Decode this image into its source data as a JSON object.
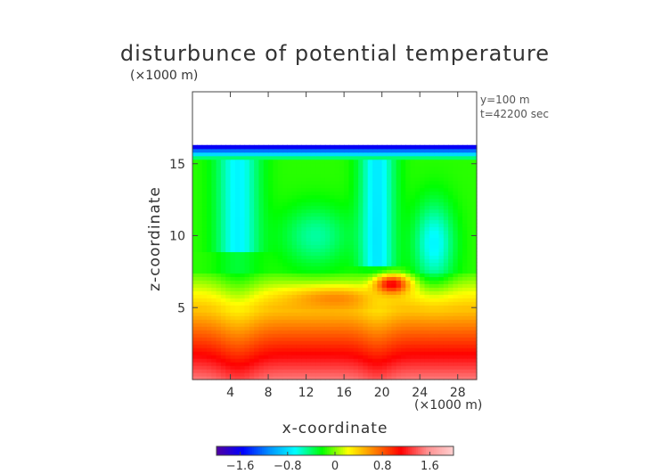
{
  "chart_data": {
    "type": "heatmap",
    "title": "disturbunce of potential temperature",
    "xlabel": "x-coordinate",
    "ylabel": "z-coordinate",
    "x_unit": "(×1000 m)",
    "y_unit": "(×1000 m)",
    "annotations": [
      "y=100 m",
      "t=42200 sec"
    ],
    "xlim": [
      0,
      30
    ],
    "ylim": [
      0,
      20
    ],
    "x_ticks": [
      4,
      8,
      12,
      16,
      20,
      24,
      28
    ],
    "y_ticks": [
      5,
      10,
      15
    ],
    "colorbar": {
      "range": [
        -2.0,
        2.0
      ],
      "ticks": [
        -1.6,
        -0.8,
        0,
        0.8,
        1.6
      ],
      "tick_labels": [
        "−1.6",
        "−0.8",
        "0",
        "0.8",
        "1.6"
      ],
      "colormap": [
        "#5000a0",
        "#0000ff",
        "#0090ff",
        "#00ffff",
        "#00ff00",
        "#ffff00",
        "#ff8000",
        "#ff0000",
        "#ff9090",
        "#ffd0d0"
      ]
    },
    "field_top_km": 16.3,
    "features": [
      {
        "name": "cold layer at domain top",
        "z_range": [
          15.8,
          16.3
        ],
        "value": -1.6
      },
      {
        "name": "upper troposphere",
        "z_range": [
          8,
          15.5
        ],
        "value": -0.2
      },
      {
        "name": "downdraft plume left",
        "x": 4.5,
        "z_range": [
          9,
          15
        ],
        "value": -0.6
      },
      {
        "name": "downdraft plume center",
        "x": 19.5,
        "z_range": [
          8,
          15
        ],
        "value": -0.6
      },
      {
        "name": "downdraft plume right",
        "x": 25,
        "z_range": [
          6,
          12
        ],
        "value": -0.6
      },
      {
        "name": "warm anomaly",
        "x": 21,
        "z": 6.7,
        "value": 1.0
      },
      {
        "name": "lower troposphere gradient",
        "z_range": [
          0,
          5
        ],
        "value_range": [
          0.4,
          1.5
        ]
      }
    ]
  }
}
